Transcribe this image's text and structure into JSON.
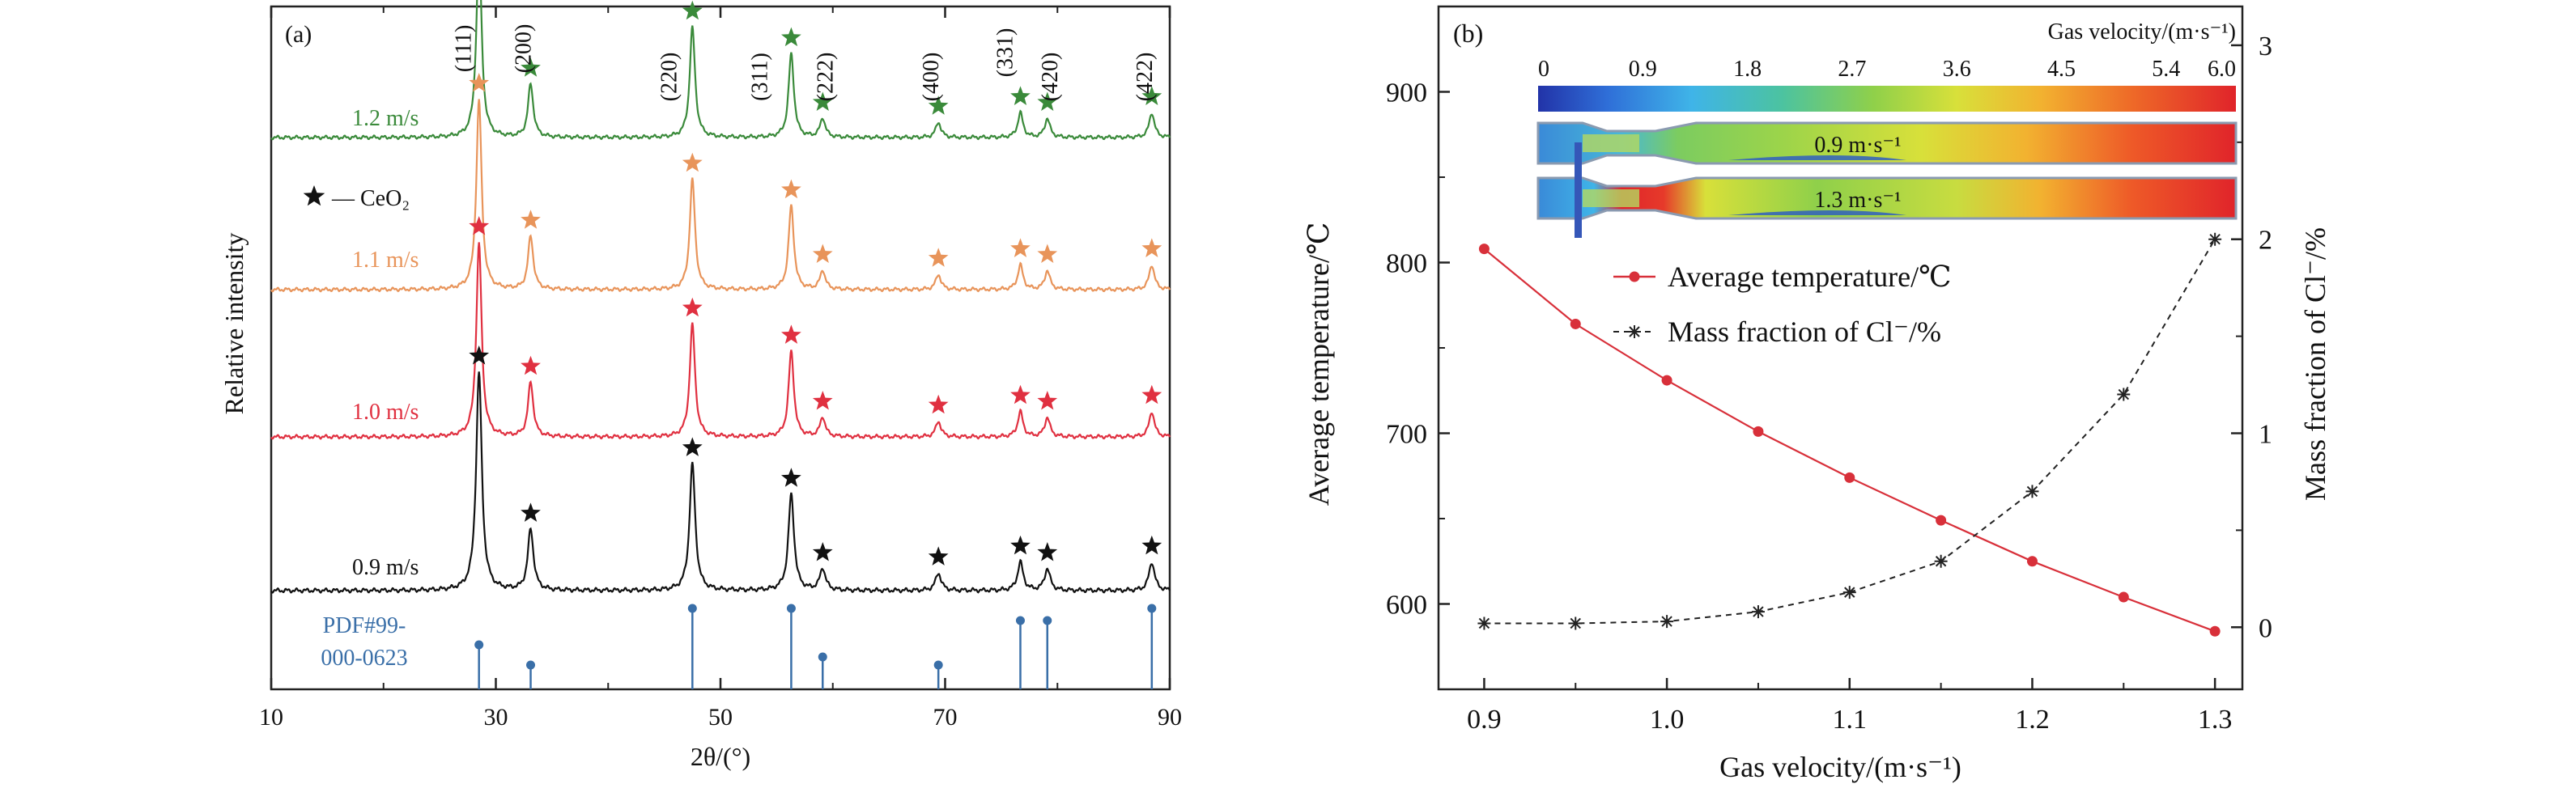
{
  "colors": {
    "green": "#3a8a3a",
    "orange": "#e8945a",
    "red": "#e03040",
    "black": "#111111",
    "blue": "#3a6fa8",
    "temp_line": "#d8303a",
    "cl_line": "#222222"
  },
  "chart_data": [
    {
      "panel": "(a)",
      "type": "line",
      "xlabel": "2θ/(°)",
      "ylabel": "Relative intensity",
      "xlim": [
        10,
        90
      ],
      "xticks": [
        "10",
        "30",
        "50",
        "70",
        "90"
      ],
      "legend": {
        "label": "— CeO₂",
        "marker": "star"
      },
      "peak_labels": [
        {
          "text": "(111)",
          "x": 28.5
        },
        {
          "text": "(200)",
          "x": 33.1
        },
        {
          "text": "(220)",
          "x": 47.5
        },
        {
          "text": "(311)",
          "x": 56.3
        },
        {
          "text": "(222)",
          "x": 59.1
        },
        {
          "text": "(400)",
          "x": 69.4
        },
        {
          "text": "(331)",
          "x": 76.7
        },
        {
          "text": "(420)",
          "x": 79.1
        },
        {
          "text": "(422)",
          "x": 88.4
        }
      ],
      "peaks": [
        {
          "x": 28.5,
          "rel": 1.0
        },
        {
          "x": 33.1,
          "rel": 0.28
        },
        {
          "x": 47.5,
          "rel": 0.58
        },
        {
          "x": 56.3,
          "rel": 0.44
        },
        {
          "x": 59.1,
          "rel": 0.1
        },
        {
          "x": 69.4,
          "rel": 0.08
        },
        {
          "x": 76.7,
          "rel": 0.13
        },
        {
          "x": 79.1,
          "rel": 0.1
        },
        {
          "x": 88.4,
          "rel": 0.13
        }
      ],
      "series": [
        {
          "name": "1.2 m/s",
          "color_key": "green"
        },
        {
          "name": "1.1 m/s",
          "color_key": "orange"
        },
        {
          "name": "1.0 m/s",
          "color_key": "red"
        },
        {
          "name": "0.9 m/s",
          "color_key": "black"
        }
      ],
      "reference": {
        "label_line1": "PDF#99-",
        "label_line2": "000-0623",
        "lines": [
          {
            "x": 28.5,
            "rel": 0.55
          },
          {
            "x": 33.1,
            "rel": 0.3
          },
          {
            "x": 47.5,
            "rel": 1.0
          },
          {
            "x": 56.3,
            "rel": 1.0
          },
          {
            "x": 59.1,
            "rel": 0.4
          },
          {
            "x": 69.4,
            "rel": 0.3
          },
          {
            "x": 76.7,
            "rel": 0.85
          },
          {
            "x": 79.1,
            "rel": 0.85
          },
          {
            "x": 88.4,
            "rel": 1.0
          }
        ]
      }
    },
    {
      "panel": "(b)",
      "type": "line",
      "xlabel": "Gas velocity/(m·s⁻¹)",
      "ylabel_left": "Average temperature/℃",
      "ylabel_right": "Mass fraction of Cl⁻/%",
      "x": [
        0.9,
        0.95,
        1.0,
        1.05,
        1.1,
        1.15,
        1.2,
        1.25,
        1.3
      ],
      "xlim": [
        0.875,
        1.315
      ],
      "xticks": [
        "0.9",
        "1.0",
        "1.1",
        "1.2",
        "1.3"
      ],
      "ylim_left": [
        550,
        950
      ],
      "yticks_left": [
        "600",
        "700",
        "800",
        "900"
      ],
      "ylim_right": [
        -0.32,
        3.2
      ],
      "yticks_right": [
        "0",
        "1",
        "2",
        "3"
      ],
      "series": [
        {
          "name": "Average temperature/℃",
          "axis": "left",
          "marker": "circle",
          "style": "solid",
          "color_key": "temp_line",
          "values": [
            808,
            764,
            731,
            701,
            674,
            649,
            625,
            604,
            584
          ]
        },
        {
          "name": "Mass fraction of Cl⁻/%",
          "axis": "right",
          "marker": "asterisk",
          "style": "dashed",
          "color_key": "cl_line",
          "values": [
            0.02,
            0.02,
            0.03,
            0.08,
            0.18,
            0.34,
            0.7,
            1.2,
            2.0
          ]
        }
      ],
      "inset": {
        "colorbar_title": "Gas velocity/(m·s⁻¹)",
        "colorbar_ticks": [
          "0",
          "0.9",
          "1.8",
          "2.7",
          "3.6",
          "4.5",
          "5.4",
          "6.0"
        ],
        "colorbar_range": [
          0,
          6.0
        ],
        "contour_labels": [
          "0.9 m·s⁻¹",
          "1.3 m·s⁻¹"
        ]
      }
    }
  ]
}
